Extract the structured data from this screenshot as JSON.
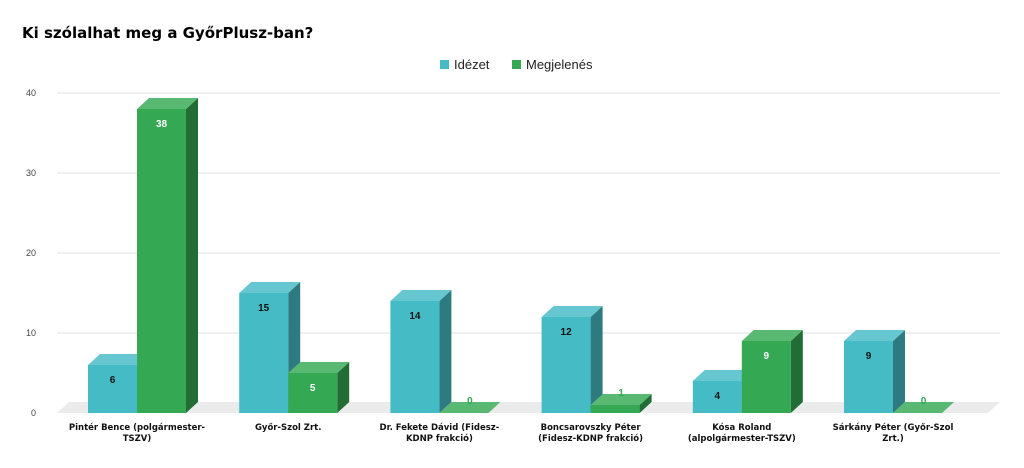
{
  "chart_data": {
    "type": "bar",
    "title": "Ki szólalhat meg a GyőrPlusz-ban?",
    "xlabel": "",
    "ylabel": "",
    "ylim": [
      0,
      40
    ],
    "yticks": [
      "0",
      "10",
      "20",
      "30",
      "40"
    ],
    "grid": true,
    "legend_position": "top-center",
    "categories": [
      [
        "Pintér Bence (polgármester-",
        "TSZV)"
      ],
      [
        "Győr-Szol Zrt."
      ],
      [
        "Dr. Fekete Dávid (Fidesz-",
        "KDNP frakció)"
      ],
      [
        "Boncsarovszky Péter",
        "(Fidesz-KDNP frakció)"
      ],
      [
        "Kósa Roland",
        "(alpolgármester-TSZV)"
      ],
      [
        "Sárkány Péter (Győr-Szol",
        "Zrt.)"
      ]
    ],
    "series": [
      {
        "name": "Idézet",
        "color": "#45BBC6",
        "values": [
          6,
          15,
          14,
          12,
          4,
          9
        ]
      },
      {
        "name": "Megjelenés",
        "color": "#34A853",
        "values": [
          38,
          5,
          0,
          1,
          9,
          0
        ]
      }
    ]
  }
}
